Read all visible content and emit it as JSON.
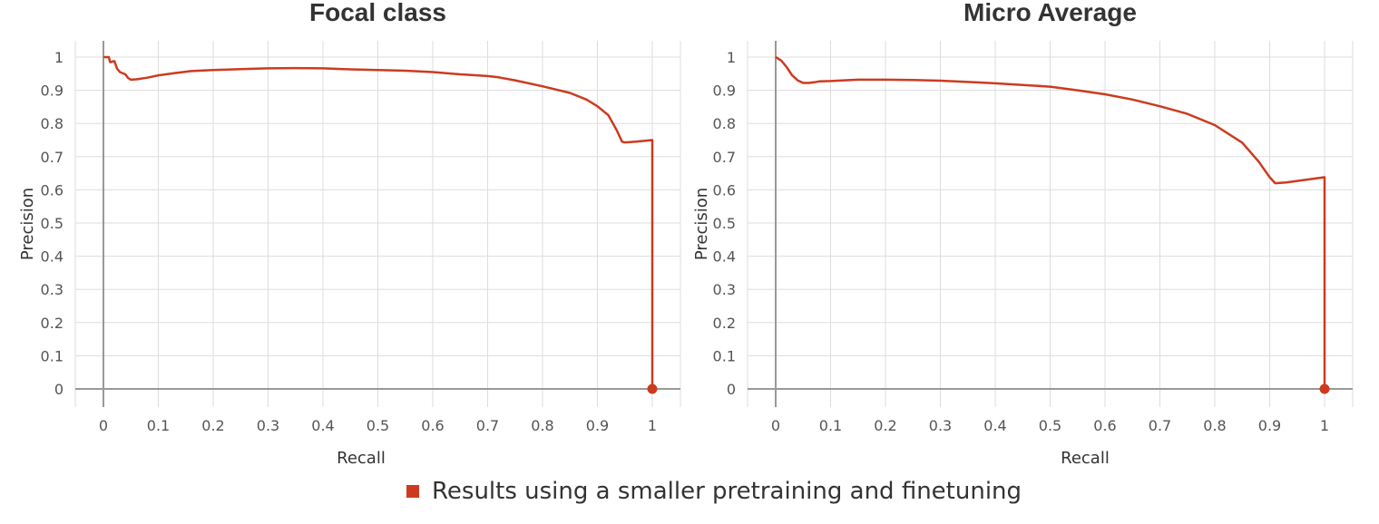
{
  "legend": {
    "label": "Results using a smaller pretraining and finetuning",
    "color": "#cc3b1f"
  },
  "chart_data": [
    {
      "type": "line",
      "title": "Focal class",
      "xlabel": "Recall",
      "ylabel": "Precision",
      "xlim": [
        0,
        1
      ],
      "ylim": [
        0,
        1
      ],
      "xticks": [
        "0",
        "0.1",
        "0.2",
        "0.3",
        "0.4",
        "0.5",
        "0.6",
        "0.7",
        "0.8",
        "0.9",
        "1"
      ],
      "yticks": [
        "0",
        "0.1",
        "0.2",
        "0.3",
        "0.4",
        "0.5",
        "0.6",
        "0.7",
        "0.8",
        "0.9",
        "1"
      ],
      "grid": true,
      "series": [
        {
          "name": "Results using a smaller pretraining and finetuning",
          "color": "#cc3b1f",
          "points": [
            [
              0.0,
              1.0
            ],
            [
              0.01,
              1.0
            ],
            [
              0.012,
              0.985
            ],
            [
              0.02,
              0.988
            ],
            [
              0.025,
              0.965
            ],
            [
              0.03,
              0.955
            ],
            [
              0.04,
              0.948
            ],
            [
              0.045,
              0.937
            ],
            [
              0.05,
              0.932
            ],
            [
              0.06,
              0.933
            ],
            [
              0.08,
              0.938
            ],
            [
              0.1,
              0.945
            ],
            [
              0.13,
              0.952
            ],
            [
              0.16,
              0.958
            ],
            [
              0.2,
              0.961
            ],
            [
              0.25,
              0.964
            ],
            [
              0.3,
              0.966
            ],
            [
              0.35,
              0.967
            ],
            [
              0.4,
              0.966
            ],
            [
              0.45,
              0.963
            ],
            [
              0.5,
              0.961
            ],
            [
              0.55,
              0.959
            ],
            [
              0.6,
              0.955
            ],
            [
              0.65,
              0.948
            ],
            [
              0.7,
              0.943
            ],
            [
              0.72,
              0.939
            ],
            [
              0.75,
              0.93
            ],
            [
              0.8,
              0.912
            ],
            [
              0.85,
              0.892
            ],
            [
              0.88,
              0.872
            ],
            [
              0.9,
              0.852
            ],
            [
              0.92,
              0.825
            ],
            [
              0.935,
              0.78
            ],
            [
              0.945,
              0.745
            ],
            [
              0.95,
              0.743
            ],
            [
              0.97,
              0.745
            ],
            [
              1.0,
              0.75
            ],
            [
              1.0,
              0.0
            ]
          ],
          "endpoint": [
            1.0,
            0.0
          ]
        }
      ]
    },
    {
      "type": "line",
      "title": "Micro Average",
      "xlabel": "Recall",
      "ylabel": "Precision",
      "xlim": [
        0,
        1
      ],
      "ylim": [
        0,
        1
      ],
      "xticks": [
        "0",
        "0.1",
        "0.2",
        "0.3",
        "0.4",
        "0.5",
        "0.6",
        "0.7",
        "0.8",
        "0.9",
        "1"
      ],
      "yticks": [
        "0",
        "0.1",
        "0.2",
        "0.3",
        "0.4",
        "0.5",
        "0.6",
        "0.7",
        "0.8",
        "0.9",
        "1"
      ],
      "grid": true,
      "series": [
        {
          "name": "Results using a smaller pretraining and finetuning",
          "color": "#cc3b1f",
          "points": [
            [
              0.0,
              1.0
            ],
            [
              0.01,
              0.99
            ],
            [
              0.02,
              0.97
            ],
            [
              0.03,
              0.945
            ],
            [
              0.04,
              0.93
            ],
            [
              0.05,
              0.922
            ],
            [
              0.06,
              0.922
            ],
            [
              0.07,
              0.924
            ],
            [
              0.08,
              0.927
            ],
            [
              0.1,
              0.928
            ],
            [
              0.15,
              0.932
            ],
            [
              0.2,
              0.932
            ],
            [
              0.25,
              0.931
            ],
            [
              0.3,
              0.929
            ],
            [
              0.35,
              0.925
            ],
            [
              0.4,
              0.921
            ],
            [
              0.45,
              0.916
            ],
            [
              0.5,
              0.911
            ],
            [
              0.55,
              0.9
            ],
            [
              0.6,
              0.888
            ],
            [
              0.65,
              0.872
            ],
            [
              0.7,
              0.852
            ],
            [
              0.75,
              0.829
            ],
            [
              0.8,
              0.795
            ],
            [
              0.85,
              0.742
            ],
            [
              0.88,
              0.685
            ],
            [
              0.9,
              0.638
            ],
            [
              0.91,
              0.62
            ],
            [
              0.93,
              0.622
            ],
            [
              1.0,
              0.638
            ],
            [
              1.0,
              0.0
            ]
          ],
          "endpoint": [
            1.0,
            0.0
          ]
        }
      ]
    }
  ]
}
